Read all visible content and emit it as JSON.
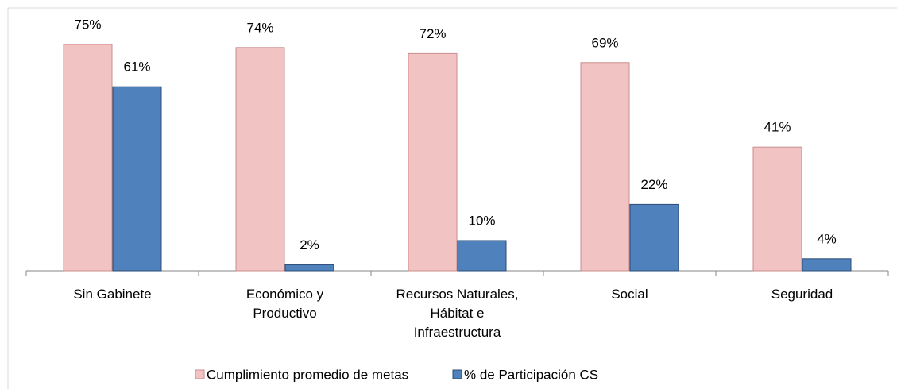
{
  "chart_data": {
    "type": "bar",
    "categories": [
      "Sin Gabinete",
      "Económico y Productivo",
      "Recursos Naturales, Hábitat e Infraestructura",
      "Social",
      "Seguridad"
    ],
    "series": [
      {
        "name": "Cumplimiento promedio de metas",
        "color": "#f2c3c3",
        "values": [
          75,
          74,
          72,
          69,
          41
        ],
        "value_labels": [
          "75%",
          "74%",
          "72%",
          "69%",
          "41%"
        ]
      },
      {
        "name": "% de Participación CS",
        "color": "#4f81bd",
        "values": [
          61,
          2,
          10,
          22,
          4
        ],
        "value_labels": [
          "61%",
          "2%",
          "10%",
          "22%",
          "4%"
        ]
      }
    ],
    "ylim": [
      0,
      80
    ],
    "legend": "bottom"
  }
}
